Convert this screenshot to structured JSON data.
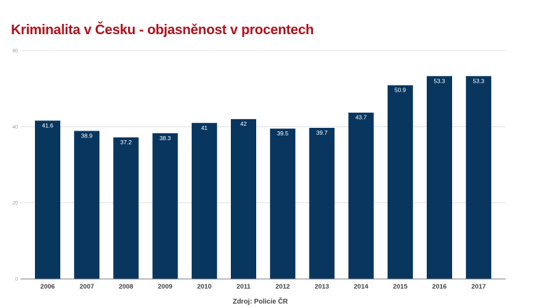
{
  "chart_data": {
    "type": "bar",
    "title": "Kriminalita v Česku - objasněnost v procentech",
    "source": "Zdroj: Policie ČR",
    "categories": [
      "2006",
      "2007",
      "2008",
      "2009",
      "2010",
      "2011",
      "2012",
      "2013",
      "2014",
      "2015",
      "2016",
      "2017"
    ],
    "values": [
      41.6,
      38.9,
      37.2,
      38.3,
      41,
      42,
      39.5,
      39.7,
      43.7,
      50.9,
      53.3,
      53.3
    ],
    "data_labels": [
      "41.6",
      "38.9",
      "37.2",
      "38.3",
      "41",
      "42",
      "39.5",
      "39.7",
      "43.7",
      "50.9",
      "53.3",
      "53.3"
    ],
    "ylim": [
      0,
      60
    ],
    "yticks": [
      "0",
      "20",
      "40",
      "60"
    ],
    "xlabel": "",
    "ylabel": "",
    "grid": true,
    "legend": "none",
    "colors": {
      "bar": "#08365f",
      "title": "#b0101a",
      "grid": "#e0e0e0"
    }
  }
}
